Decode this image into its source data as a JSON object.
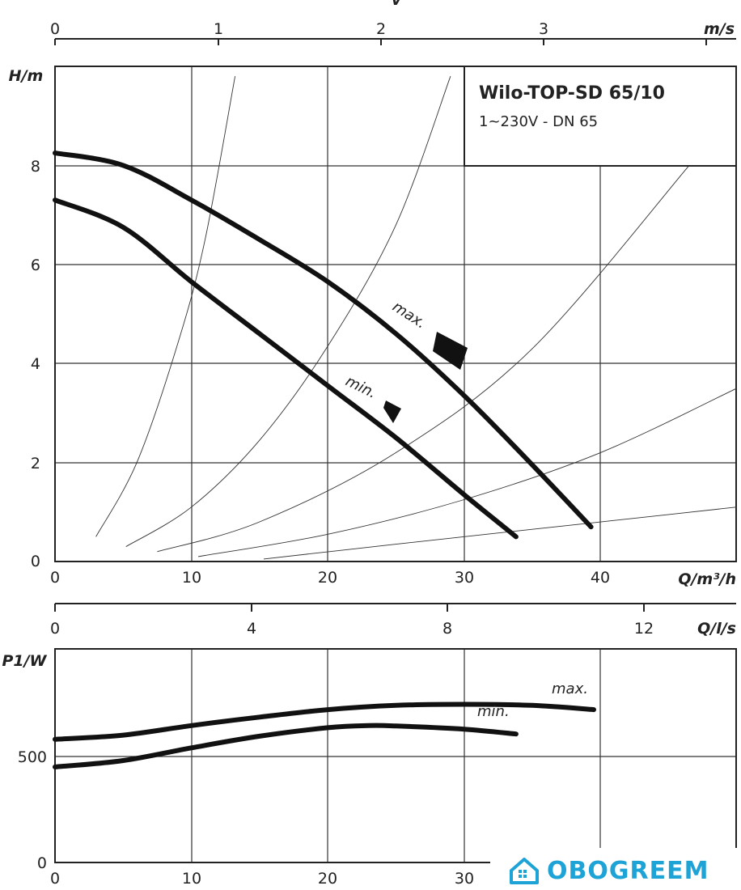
{
  "chart_data": [
    {
      "type": "line",
      "title": "Wilo-TOP-SD 65/10",
      "subtitle": "1~230V - DN 65",
      "xlabel": "Q/m³/h",
      "ylabel": "H/m",
      "xlim": [
        0,
        50
      ],
      "ylim": [
        0,
        10
      ],
      "x_ticks": [
        "0",
        "10",
        "20",
        "30",
        "40"
      ],
      "y_ticks": [
        "0",
        "2",
        "4",
        "6",
        "8"
      ],
      "top_axis": {
        "label": "m/s",
        "tick_labels": [
          "0",
          "1",
          "2",
          "3"
        ],
        "letter": "v"
      },
      "flow_axis": {
        "label": "Q/l/s",
        "tick_labels": [
          "0",
          "4",
          "8",
          "12"
        ]
      },
      "series": [
        {
          "name": "max.",
          "x": [
            0,
            5,
            10,
            15,
            20,
            25,
            30,
            35,
            39.3
          ],
          "y": [
            8.25,
            8.0,
            7.3,
            6.5,
            5.65,
            4.6,
            3.35,
            1.95,
            0.7
          ]
        },
        {
          "name": "min.",
          "x": [
            0,
            5,
            10,
            15,
            20,
            25,
            30,
            33.8
          ],
          "y": [
            7.3,
            6.75,
            5.65,
            4.6,
            3.55,
            2.5,
            1.35,
            0.5
          ]
        }
      ],
      "system_curves": [
        {
          "x": [
            3,
            6,
            9,
            11,
            13.2
          ],
          "y": [
            0.5,
            2.0,
            4.4,
            6.5,
            9.8
          ]
        },
        {
          "x": [
            5.2,
            10,
            15,
            20,
            25,
            29
          ],
          "y": [
            0.3,
            1.1,
            2.45,
            4.35,
            6.8,
            9.8
          ]
        },
        {
          "x": [
            7.5,
            15,
            25,
            35,
            46.5
          ],
          "y": [
            0.2,
            0.8,
            2.2,
            4.3,
            8.0
          ]
        },
        {
          "x": [
            10.5,
            20,
            30,
            40,
            50
          ],
          "y": [
            0.1,
            0.55,
            1.25,
            2.2,
            3.5
          ]
        },
        {
          "x": [
            15.3,
            25,
            35,
            45,
            50
          ],
          "y": [
            0.05,
            0.35,
            0.65,
            0.95,
            1.1
          ]
        }
      ]
    },
    {
      "type": "line",
      "ylabel": "P1/W",
      "xlim": [
        0,
        50
      ],
      "ylim": [
        0,
        800
      ],
      "x_ticks": [
        "0",
        "10",
        "20",
        "30"
      ],
      "y_ticks": [
        "0",
        "500"
      ],
      "series": [
        {
          "name": "max.",
          "x": [
            0,
            5,
            10,
            15,
            20,
            25,
            30,
            35,
            39.5
          ],
          "y": [
            580,
            600,
            645,
            685,
            720,
            740,
            745,
            740,
            720
          ]
        },
        {
          "name": "min.",
          "x": [
            0,
            5,
            10,
            15,
            20,
            23,
            25,
            30,
            33.8
          ],
          "y": [
            450,
            480,
            540,
            595,
            635,
            645,
            643,
            628,
            605
          ]
        }
      ]
    }
  ],
  "logo": {
    "text": "OBOGREEM",
    "icon": "house-icon",
    "color": "#1ea3d7"
  }
}
